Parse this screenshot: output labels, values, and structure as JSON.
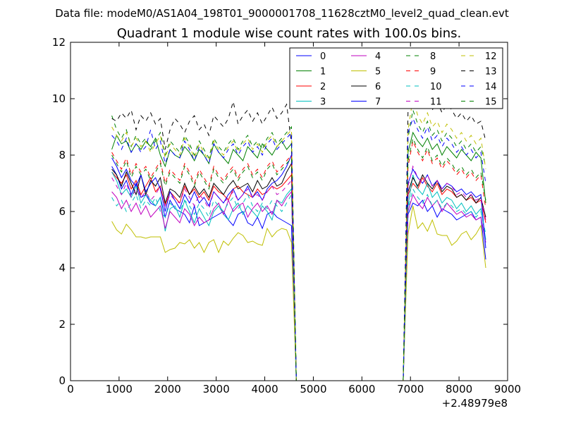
{
  "page": {
    "supertitle": "Data file: modeM0/AS1A04_198T01_9000001708_11628cztM0_level2_quad_clean.evt"
  },
  "chart_data": {
    "type": "line",
    "title": "Quadrant 1 module wise count rates with 100.0s bins.",
    "xlabel": "",
    "ylabel": "",
    "x_offset_label": "+2.48979e8",
    "xlim": [
      0,
      9000
    ],
    "ylim": [
      0,
      12
    ],
    "xticks": [
      0,
      1000,
      2000,
      3000,
      4000,
      5000,
      6000,
      7000,
      8000,
      9000
    ],
    "yticks": [
      0,
      2,
      4,
      6,
      8,
      10,
      12
    ],
    "grid": false,
    "legend_position": "top-right",
    "legend_columns": 4,
    "x": [
      850,
      950,
      1050,
      1150,
      1250,
      1350,
      1450,
      1550,
      1650,
      1750,
      1850,
      1950,
      2050,
      2150,
      2250,
      2350,
      2450,
      2550,
      2650,
      2750,
      2850,
      2950,
      3050,
      3150,
      3250,
      3350,
      3450,
      3550,
      3650,
      3750,
      3850,
      3950,
      4050,
      4150,
      4250,
      4350,
      4450,
      4550,
      4650,
      4750,
      6850,
      6950,
      7050,
      7150,
      7250,
      7350,
      7450,
      7550,
      7650,
      7750,
      7850,
      7950,
      8050,
      8150,
      8250,
      8350,
      8450,
      8550
    ],
    "series": [
      {
        "name": "0",
        "color": "#0000ff",
        "dashed": false,
        "values": [
          7.6,
          7.3,
          6.8,
          7.1,
          6.6,
          7.0,
          6.5,
          6.6,
          6.3,
          6.2,
          6.5,
          5.8,
          6.4,
          6.1,
          6.0,
          5.9,
          5.6,
          6.2,
          5.5,
          5.6,
          5.7,
          5.8,
          5.9,
          6.0,
          5.7,
          5.5,
          5.9,
          6.0,
          5.6,
          5.5,
          5.8,
          5.4,
          5.9,
          6.0,
          5.8,
          5.7,
          5.6,
          5.5,
          0.0,
          0.0,
          0.0,
          5.9,
          6.3,
          6.2,
          6.4,
          6.0,
          6.2,
          5.8,
          6.1,
          6.0,
          5.9,
          5.7,
          5.8,
          5.9,
          6.0,
          5.7,
          5.8,
          4.3
        ]
      },
      {
        "name": "1",
        "color": "#008000",
        "dashed": false,
        "values": [
          8.2,
          8.7,
          8.4,
          8.5,
          8.1,
          8.4,
          8.2,
          8.5,
          8.3,
          8.6,
          8.0,
          7.6,
          8.2,
          8.0,
          7.9,
          8.3,
          8.1,
          7.8,
          8.2,
          8.0,
          7.7,
          8.4,
          8.1,
          7.9,
          7.7,
          8.2,
          8.0,
          7.8,
          8.3,
          8.1,
          7.9,
          8.4,
          8.2,
          8.0,
          8.3,
          8.5,
          8.2,
          8.4,
          0.0,
          0.0,
          0.0,
          8.1,
          8.8,
          8.5,
          8.3,
          8.6,
          8.2,
          8.4,
          8.0,
          8.3,
          8.1,
          7.9,
          8.2,
          8.0,
          7.8,
          8.1,
          7.9,
          6.3
        ]
      },
      {
        "name": "2",
        "color": "#ff0000",
        "dashed": false,
        "values": [
          7.4,
          7.2,
          7.0,
          7.3,
          6.8,
          7.1,
          6.6,
          6.9,
          7.2,
          6.7,
          6.9,
          6.2,
          6.7,
          6.5,
          6.3,
          6.9,
          6.6,
          6.8,
          6.5,
          6.7,
          6.4,
          6.9,
          6.7,
          6.6,
          6.4,
          6.8,
          6.9,
          6.7,
          6.6,
          6.5,
          6.8,
          6.6,
          6.7,
          6.9,
          6.8,
          6.9,
          7.1,
          7.3,
          0.0,
          0.0,
          0.0,
          6.6,
          7.0,
          6.8,
          7.2,
          6.9,
          6.7,
          7.0,
          6.6,
          6.8,
          6.7,
          6.5,
          6.6,
          6.4,
          6.5,
          6.3,
          6.4,
          5.6
        ]
      },
      {
        "name": "3",
        "color": "#00bfbf",
        "dashed": false,
        "values": [
          7.4,
          7.1,
          6.6,
          6.8,
          6.5,
          6.9,
          6.3,
          6.6,
          6.4,
          6.2,
          6.5,
          5.3,
          6.1,
          6.2,
          5.8,
          6.4,
          6.0,
          5.6,
          6.1,
          5.8,
          5.5,
          6.0,
          6.2,
          5.9,
          5.7,
          6.1,
          6.3,
          5.9,
          6.2,
          6.0,
          5.8,
          6.2,
          6.0,
          5.7,
          6.4,
          6.3,
          6.6,
          6.8,
          0.0,
          0.0,
          0.0,
          6.2,
          7.3,
          6.8,
          6.6,
          7.0,
          6.5,
          6.7,
          6.3,
          6.5,
          6.4,
          6.1,
          6.3,
          6.0,
          6.2,
          5.9,
          6.1,
          5.0
        ]
      },
      {
        "name": "4",
        "color": "#bf00bf",
        "dashed": false,
        "values": [
          6.7,
          6.5,
          6.1,
          6.4,
          6.0,
          6.3,
          5.9,
          6.2,
          5.8,
          6.0,
          6.2,
          5.4,
          6.0,
          5.8,
          5.6,
          6.1,
          5.9,
          5.5,
          5.8,
          5.6,
          5.7,
          6.1,
          6.3,
          5.9,
          6.4,
          6.0,
          6.2,
          6.3,
          5.8,
          6.1,
          6.3,
          6.0,
          6.2,
          5.9,
          6.4,
          6.2,
          6.5,
          6.7,
          0.0,
          0.0,
          0.0,
          6.0,
          6.6,
          6.3,
          6.1,
          6.5,
          6.2,
          6.4,
          6.0,
          6.3,
          6.1,
          5.9,
          6.0,
          5.8,
          5.9,
          5.7,
          5.8,
          4.9
        ]
      },
      {
        "name": "5",
        "color": "#bfbf00",
        "dashed": false,
        "values": [
          5.65,
          5.35,
          5.2,
          5.55,
          5.35,
          5.1,
          5.1,
          5.05,
          5.1,
          5.1,
          5.1,
          4.55,
          4.65,
          4.7,
          4.9,
          4.85,
          5.0,
          4.7,
          4.9,
          4.55,
          4.9,
          5.0,
          4.55,
          4.95,
          4.8,
          5.05,
          5.25,
          5.15,
          4.9,
          4.95,
          4.85,
          4.8,
          5.4,
          5.1,
          5.3,
          5.4,
          5.35,
          4.9,
          0.0,
          0.0,
          0.0,
          5.2,
          6.2,
          5.4,
          5.6,
          5.3,
          5.7,
          5.2,
          5.15,
          5.15,
          4.8,
          4.95,
          5.2,
          5.3,
          5.0,
          5.2,
          5.5,
          4.0
        ]
      },
      {
        "name": "6",
        "color": "#000000",
        "dashed": false,
        "values": [
          7.5,
          7.3,
          6.9,
          7.4,
          7.0,
          6.6,
          7.3,
          6.6,
          7.1,
          6.9,
          7.2,
          6.3,
          6.8,
          6.7,
          6.5,
          7.0,
          6.6,
          6.9,
          6.6,
          6.8,
          6.5,
          7.0,
          6.8,
          6.6,
          6.9,
          7.1,
          6.8,
          6.9,
          7.0,
          6.7,
          7.1,
          6.8,
          6.9,
          7.2,
          6.9,
          7.0,
          7.4,
          7.7,
          0.0,
          0.0,
          0.0,
          6.7,
          7.2,
          6.9,
          7.3,
          7.0,
          6.8,
          7.1,
          6.7,
          6.9,
          6.8,
          6.5,
          6.6,
          6.4,
          6.6,
          6.3,
          6.5,
          5.8
        ]
      },
      {
        "name": "7",
        "color": "#0000ff",
        "dashed": false,
        "values": [
          7.9,
          7.6,
          7.2,
          7.5,
          7.1,
          6.9,
          7.3,
          6.7,
          7.0,
          7.2,
          6.8,
          6.0,
          6.7,
          6.4,
          6.1,
          6.6,
          6.3,
          6.7,
          6.3,
          6.5,
          6.2,
          6.7,
          6.5,
          6.3,
          6.6,
          6.8,
          6.4,
          6.6,
          6.9,
          6.5,
          6.7,
          6.4,
          6.8,
          7.0,
          7.1,
          7.3,
          7.6,
          8.0,
          0.0,
          0.0,
          0.0,
          7.0,
          7.5,
          7.2,
          7.0,
          7.3,
          6.9,
          7.1,
          6.8,
          7.0,
          6.9,
          6.7,
          6.8,
          6.6,
          6.7,
          6.5,
          6.6,
          4.7
        ]
      },
      {
        "name": "8",
        "color": "#008000",
        "dashed": true,
        "values": [
          9.4,
          8.9,
          8.6,
          8.9,
          8.3,
          8.7,
          8.4,
          8.6,
          8.2,
          8.5,
          8.8,
          8.0,
          8.5,
          8.3,
          8.1,
          8.7,
          8.4,
          8.0,
          8.5,
          8.2,
          7.9,
          8.6,
          8.3,
          8.1,
          8.4,
          8.6,
          8.2,
          8.5,
          8.7,
          8.3,
          8.5,
          8.2,
          8.6,
          8.8,
          8.4,
          8.6,
          8.8,
          9.0,
          0.0,
          0.0,
          0.0,
          8.6,
          9.6,
          9.1,
          8.8,
          9.2,
          8.7,
          8.9,
          8.5,
          8.8,
          8.6,
          8.3,
          8.5,
          8.2,
          8.4,
          8.1,
          8.3,
          7.6
        ]
      },
      {
        "name": "9",
        "color": "#ff0000",
        "dashed": true,
        "values": [
          8.1,
          7.8,
          7.5,
          7.9,
          7.3,
          7.7,
          7.4,
          7.6,
          7.2,
          7.5,
          7.8,
          7.0,
          7.5,
          7.3,
          7.1,
          7.7,
          7.4,
          7.0,
          7.5,
          7.2,
          6.9,
          7.6,
          7.3,
          7.1,
          7.4,
          7.6,
          7.2,
          7.5,
          7.7,
          7.3,
          7.5,
          7.2,
          7.6,
          7.8,
          7.4,
          7.6,
          7.8,
          8.0,
          0.0,
          0.0,
          0.0,
          7.6,
          8.5,
          8.1,
          7.8,
          8.2,
          7.7,
          7.9,
          7.5,
          7.8,
          7.6,
          7.3,
          7.5,
          7.2,
          7.4,
          7.1,
          7.3,
          6.1
        ]
      },
      {
        "name": "10",
        "color": "#00bfbf",
        "dashed": true,
        "values": [
          6.5,
          6.2,
          6.4,
          6.0,
          6.3,
          6.6,
          6.1,
          6.4,
          6.2,
          6.5,
          6.0,
          5.8,
          6.3,
          6.1,
          6.0,
          6.4,
          6.2,
          5.9,
          6.3,
          6.1,
          5.8,
          6.4,
          6.2,
          6.0,
          6.3,
          6.5,
          6.1,
          6.3,
          6.6,
          6.2,
          6.0,
          6.3,
          6.1,
          6.4,
          6.2,
          6.0,
          6.3,
          6.6,
          0.0,
          0.0,
          0.0,
          6.1,
          6.8,
          6.5,
          6.3,
          6.6,
          6.2,
          6.4,
          6.1,
          6.3,
          6.2,
          6.0,
          6.1,
          5.9,
          6.0,
          5.8,
          6.0,
          5.2
        ]
      },
      {
        "name": "11",
        "color": "#bf00bf",
        "dashed": true,
        "values": [
          7.2,
          6.9,
          6.6,
          7.0,
          6.5,
          6.8,
          6.5,
          6.7,
          6.4,
          6.6,
          6.9,
          6.2,
          6.6,
          6.4,
          6.3,
          6.8,
          6.5,
          6.2,
          6.6,
          6.4,
          6.1,
          6.7,
          6.5,
          6.3,
          6.5,
          6.7,
          6.4,
          6.6,
          6.8,
          6.5,
          6.6,
          6.4,
          6.7,
          6.9,
          6.6,
          6.7,
          6.9,
          7.1,
          0.0,
          0.0,
          0.0,
          6.9,
          7.6,
          7.2,
          7.0,
          7.3,
          6.9,
          7.1,
          6.8,
          7.0,
          6.9,
          6.6,
          6.7,
          6.5,
          6.6,
          6.4,
          6.5,
          5.7
        ]
      },
      {
        "name": "12",
        "color": "#bfbf00",
        "dashed": true,
        "values": [
          9.0,
          8.7,
          8.5,
          8.8,
          8.3,
          8.6,
          8.3,
          8.5,
          8.1,
          8.4,
          8.7,
          7.9,
          8.4,
          8.2,
          8.0,
          8.6,
          8.3,
          7.9,
          8.4,
          8.1,
          7.8,
          8.5,
          8.2,
          8.0,
          8.3,
          8.5,
          8.1,
          8.4,
          8.6,
          8.2,
          8.4,
          8.1,
          8.5,
          8.7,
          8.3,
          8.5,
          8.7,
          8.9,
          0.0,
          0.0,
          0.0,
          8.9,
          10.0,
          9.4,
          9.1,
          9.5,
          9.0,
          9.2,
          8.8,
          9.1,
          8.9,
          8.6,
          8.8,
          8.5,
          8.7,
          8.4,
          8.6,
          7.5
        ]
      },
      {
        "name": "13",
        "color": "#000000",
        "dashed": true,
        "values": [
          9.3,
          9.2,
          9.5,
          9.3,
          9.6,
          8.9,
          9.4,
          9.2,
          9.5,
          9.1,
          9.3,
          8.2,
          8.9,
          9.3,
          9.1,
          8.8,
          9.2,
          9.4,
          8.9,
          9.1,
          8.7,
          9.4,
          9.2,
          9.0,
          9.3,
          9.9,
          9.1,
          9.4,
          9.6,
          9.2,
          9.5,
          9.1,
          9.4,
          9.7,
          9.3,
          9.5,
          9.8,
          8.4,
          0.0,
          0.0,
          0.0,
          9.6,
          10.2,
          10.1,
          9.8,
          10.0,
          9.6,
          9.9,
          9.5,
          9.8,
          9.6,
          9.3,
          9.5,
          9.2,
          9.4,
          9.1,
          9.2,
          8.5
        ]
      },
      {
        "name": "14",
        "color": "#0000ff",
        "dashed": true,
        "values": [
          8.7,
          8.5,
          8.2,
          8.6,
          8.1,
          8.4,
          8.1,
          8.3,
          8.9,
          8.2,
          8.5,
          7.7,
          8.2,
          8.0,
          7.9,
          8.5,
          8.2,
          7.8,
          8.3,
          8.0,
          7.7,
          8.4,
          8.1,
          7.9,
          8.2,
          8.4,
          8.0,
          8.3,
          8.5,
          8.1,
          8.3,
          8.0,
          8.4,
          8.6,
          8.2,
          8.4,
          8.6,
          8.8,
          0.0,
          0.0,
          0.0,
          8.8,
          9.3,
          8.9,
          8.6,
          9.0,
          8.5,
          8.7,
          8.3,
          8.6,
          8.4,
          8.1,
          8.3,
          8.0,
          8.2,
          7.9,
          8.1,
          7.0
        ]
      },
      {
        "name": "15",
        "color": "#008000",
        "dashed": true,
        "values": [
          8.0,
          7.7,
          7.4,
          7.8,
          7.2,
          7.6,
          7.3,
          7.5,
          7.1,
          7.4,
          7.7,
          6.9,
          7.4,
          7.2,
          7.0,
          7.6,
          7.3,
          6.9,
          7.4,
          7.1,
          6.8,
          7.5,
          7.2,
          7.0,
          7.3,
          7.5,
          7.1,
          7.4,
          7.6,
          7.2,
          7.4,
          7.1,
          7.5,
          7.7,
          7.3,
          7.5,
          7.7,
          7.9,
          0.0,
          0.0,
          0.0,
          7.8,
          8.6,
          8.2,
          7.9,
          8.3,
          7.8,
          8.0,
          7.6,
          7.9,
          7.7,
          7.4,
          7.6,
          7.3,
          7.5,
          7.2,
          7.4,
          6.4
        ]
      }
    ]
  }
}
